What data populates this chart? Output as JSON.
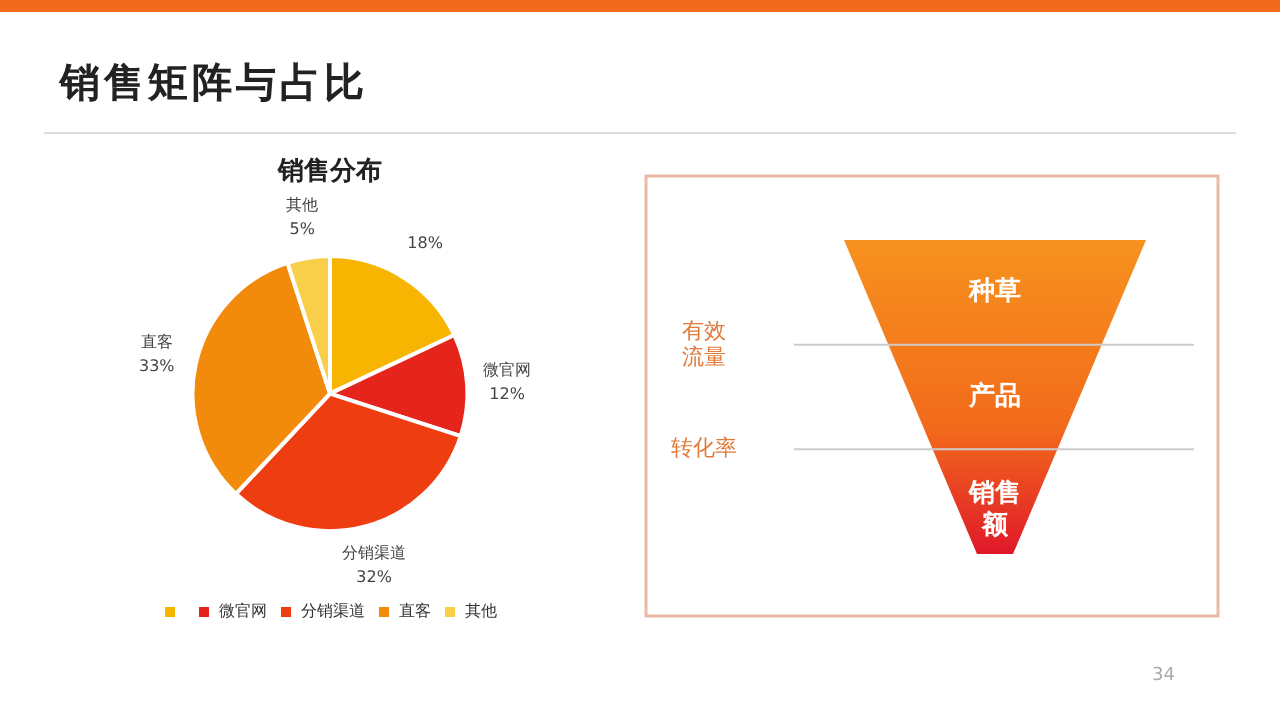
{
  "chart_data": [
    {
      "type": "pie",
      "title": "销售矩阵与占比",
      "subtitle": "销售分布",
      "categories": [
        null,
        "微官网",
        "分销渠道",
        "直客",
        "其他"
      ],
      "values": [
        18,
        12,
        32,
        33,
        5
      ],
      "value_labels": [
        "18%",
        "12%",
        "32%",
        "33%",
        "5%"
      ],
      "colors": [
        "#f7b400",
        "#e5251b",
        "#ef3d12",
        "#f28a0c",
        "#f9cf4a"
      ],
      "legend": "bottom",
      "annotations": [
        "34"
      ]
    },
    {
      "type": "other",
      "categories": [
        "种草",
        "产品",
        "销售额"
      ],
      "annotations": [
        "有效流量",
        "转化率"
      ]
    }
  ]
}
